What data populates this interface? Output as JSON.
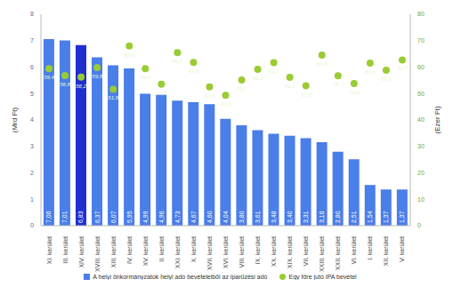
{
  "chart_data": {
    "type": "bar",
    "categories": [
      "XI. kerület",
      "III. kerület",
      "XIV. kerület",
      "XVIII. kerület",
      "XIII. kerület",
      "IV. kerület",
      "XV. kerület",
      "II. kerület",
      "XXI. kerület",
      "X. kerület",
      "XVII. kerület",
      "XVI. kerület",
      "VIII. kerület",
      "IX. kerület",
      "XX. kerület",
      "XIX. kerület",
      "VII. kerület",
      "XXIII. kerület",
      "XXII. kerület",
      "VI. kerület",
      "I. kerület",
      "XII. kerület",
      "V. kerület"
    ],
    "series": [
      {
        "name": "A helyi önkormányzatok helyi adó bevételeiből az iparűzési adó",
        "type": "bar",
        "color": "#4a7ee8",
        "colors": [
          "#4a7ee8",
          "#4a7ee8",
          "#1f2fd0",
          "#4a7ee8",
          "#4a7ee8",
          "#4a7ee8",
          "#4a7ee8",
          "#4a7ee8",
          "#4a7ee8",
          "#4a7ee8",
          "#4a7ee8",
          "#4a7ee8",
          "#4a7ee8",
          "#4a7ee8",
          "#4a7ee8",
          "#4a7ee8",
          "#4a7ee8",
          "#4a7ee8",
          "#4a7ee8",
          "#4a7ee8",
          "#4a7ee8",
          "#4a7ee8",
          "#4a7ee8"
        ],
        "values": [
          7.06,
          7.01,
          6.83,
          6.37,
          6.07,
          5.95,
          4.99,
          4.96,
          4.73,
          4.67,
          4.6,
          4.04,
          3.8,
          3.61,
          3.48,
          3.4,
          3.31,
          3.16,
          2.8,
          2.51,
          1.54,
          1.37,
          1.37
        ],
        "value_labels": [
          "7,06",
          "7,01",
          "6,83",
          "6,37",
          "6,07",
          "5,95",
          "4,99",
          "4,96",
          "4,73",
          "4,67",
          "4,60",
          "4,04",
          "3,80",
          "3,61",
          "3,48",
          "3,40",
          "3,31",
          "3,16",
          "2,80",
          "2,51",
          "1,54",
          "1,37",
          "1,37"
        ]
      },
      {
        "name": "Egy főre jutó IPA bevétel",
        "type": "scatter",
        "color": "#99cc33",
        "axis": "y2",
        "marker": "circle",
        "values": [
          59.4,
          56.8,
          56.2,
          59.8,
          51.6,
          68.0,
          59.4,
          53.5,
          65.5,
          61.8,
          52.5,
          49.3,
          55.1,
          59.2,
          61.7,
          56.1,
          52.9,
          64.5,
          56.7,
          53.8,
          61.5,
          58.8,
          62.7
        ],
        "value_labels": [
          "59,4",
          "56,8",
          "56,2",
          "59,8",
          "51,6",
          "68,0",
          "59,4",
          "53,5",
          "65,5",
          "61,8",
          "52,5",
          "49,3",
          "55,1",
          "59,2",
          "61,7",
          "56,1",
          "52,9",
          "64,5",
          "56,7",
          "53,8",
          "61,5",
          "58,8",
          "62,7"
        ]
      }
    ],
    "y_label": "(Mrd Ft)",
    "y2_label": "(Ezer Ft)",
    "ylim": [
      0,
      8
    ],
    "yticks": [
      0,
      1,
      2,
      3,
      4,
      5,
      6,
      7,
      8
    ],
    "y2lim": [
      0,
      80
    ],
    "y2ticks": [
      0,
      10,
      20,
      30,
      40,
      50,
      60,
      70,
      80
    ],
    "grid": false,
    "data_labels": true,
    "legend": "bottom"
  }
}
